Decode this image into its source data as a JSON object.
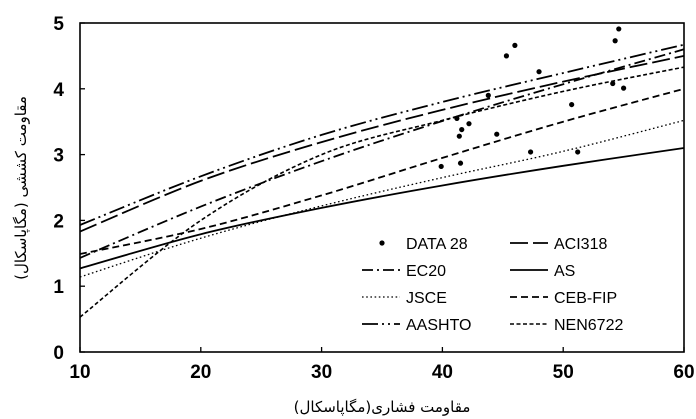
{
  "chart_data": {
    "type": "scatter",
    "title": "",
    "xlabel": "مقاومت فشاری(مگاپاسکال)",
    "ylabel": "مقاومت کششی (مگاپاسکال)",
    "xlim": [
      10,
      60
    ],
    "ylim": [
      0,
      5
    ],
    "xticks": [
      10,
      20,
      30,
      40,
      50,
      60
    ],
    "yticks": [
      0,
      1,
      2,
      3,
      4,
      5
    ],
    "grid": false,
    "legend_position": "bottom-right",
    "scatter": {
      "name": "DATA 28",
      "points": [
        [
          39.9,
          2.82
        ],
        [
          41.2,
          3.55
        ],
        [
          41.4,
          3.28
        ],
        [
          41.5,
          2.87
        ],
        [
          41.6,
          3.38
        ],
        [
          42.2,
          3.47
        ],
        [
          43.8,
          3.9
        ],
        [
          44.5,
          3.31
        ],
        [
          45.3,
          4.5
        ],
        [
          46.0,
          4.66
        ],
        [
          47.3,
          3.04
        ],
        [
          48.0,
          4.26
        ],
        [
          50.7,
          3.76
        ],
        [
          51.2,
          3.04
        ],
        [
          54.1,
          4.08
        ],
        [
          54.3,
          4.73
        ],
        [
          54.6,
          4.91
        ],
        [
          55.0,
          4.01
        ]
      ]
    },
    "series": [
      {
        "name": "ACI318",
        "dash": "long-dash",
        "values_at": [
          [
            10,
            1.83
          ],
          [
            20,
            2.6
          ],
          [
            30,
            3.19
          ],
          [
            40,
            3.68
          ],
          [
            50,
            4.11
          ],
          [
            60,
            4.5
          ]
        ]
      },
      {
        "name": "EC20",
        "dash": "dash-dot",
        "values_at": [
          [
            10,
            1.43
          ],
          [
            20,
            2.21
          ],
          [
            30,
            2.9
          ],
          [
            40,
            3.51
          ],
          [
            50,
            4.07
          ],
          [
            60,
            4.6
          ]
        ]
      },
      {
        "name": "AS",
        "dash": "solid",
        "values_at": [
          [
            10,
            1.27
          ],
          [
            20,
            1.79
          ],
          [
            30,
            2.19
          ],
          [
            40,
            2.53
          ],
          [
            50,
            2.83
          ],
          [
            60,
            3.1
          ]
        ]
      },
      {
        "name": "JSCE",
        "dash": "dotted",
        "values_at": [
          [
            10,
            1.14
          ],
          [
            20,
            1.73
          ],
          [
            30,
            2.22
          ],
          [
            40,
            2.65
          ],
          [
            50,
            3.05
          ],
          [
            60,
            3.52
          ]
        ]
      },
      {
        "name": "CEB-FIP",
        "dash": "short-dash",
        "values_at": [
          [
            10,
            1.49
          ],
          [
            20,
            1.87
          ],
          [
            30,
            2.38
          ],
          [
            40,
            2.95
          ],
          [
            50,
            3.5
          ],
          [
            60,
            4.0
          ]
        ]
      },
      {
        "name": "AASHTO",
        "dash": "dash-dot-dot",
        "values_at": [
          [
            10,
            1.93
          ],
          [
            20,
            2.67
          ],
          [
            30,
            3.3
          ],
          [
            40,
            3.8
          ],
          [
            50,
            4.24
          ],
          [
            60,
            4.67
          ]
        ]
      },
      {
        "name": "NEN6722",
        "dash": "fine-dash",
        "values_at": [
          [
            10,
            0.53
          ],
          [
            20,
            2.0
          ],
          [
            30,
            3.0
          ],
          [
            40,
            3.52
          ],
          [
            50,
            3.96
          ],
          [
            60,
            4.33
          ]
        ]
      }
    ],
    "legend_order": [
      "DATA 28",
      "ACI318",
      "EC20",
      "AS",
      "JSCE",
      "CEB-FIP",
      "AASHTO",
      "NEN6722"
    ]
  }
}
